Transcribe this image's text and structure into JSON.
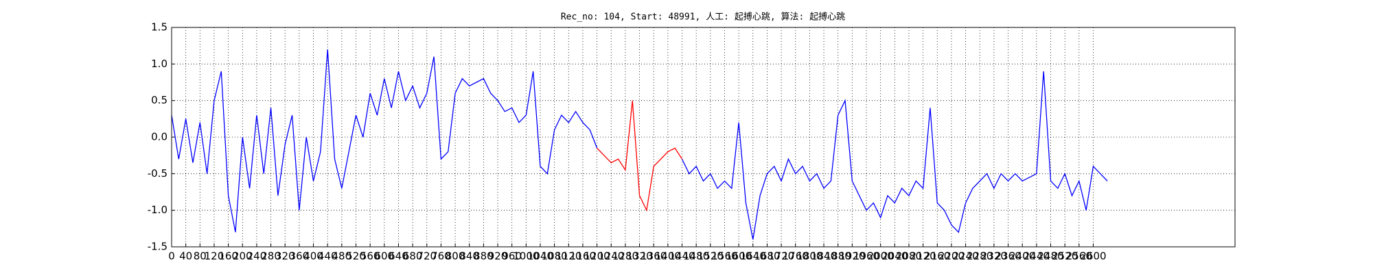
{
  "chart_data": {
    "type": "line",
    "title": "Rec_no: 104, Start: 48991, 人工: 起搏心跳, 算法: 起搏心跳",
    "x": [
      0,
      20,
      40,
      60,
      80,
      100,
      120,
      140,
      160,
      180,
      200,
      220,
      240,
      260,
      280,
      300,
      320,
      340,
      360,
      380,
      400,
      420,
      440,
      460,
      480,
      500,
      520,
      540,
      560,
      580,
      600,
      620,
      640,
      660,
      680,
      700,
      720,
      740,
      760,
      780,
      800,
      820,
      840,
      860,
      880,
      900,
      920,
      940,
      960,
      980,
      1000,
      1020,
      1040,
      1060,
      1080,
      1100,
      1120,
      1140,
      1160,
      1180,
      1200,
      1220,
      1240,
      1260,
      1280,
      1300,
      1320,
      1340,
      1360,
      1380,
      1400,
      1420,
      1440,
      1460,
      1480,
      1500,
      1520,
      1540,
      1560,
      1580,
      1600,
      1620,
      1640,
      1660,
      1680,
      1700,
      1720,
      1740,
      1760,
      1780,
      1800,
      1820,
      1840,
      1860,
      1880,
      1900,
      1920,
      1940,
      1960,
      1980,
      2000,
      2020,
      2040,
      2060,
      2080,
      2100,
      2120,
      2140,
      2160,
      2180,
      2200,
      2220,
      2240,
      2260,
      2280,
      2300,
      2320,
      2340,
      2360,
      2380,
      2400,
      2420,
      2440,
      2460,
      2480,
      2500,
      2520,
      2540,
      2560,
      2580,
      2600,
      2620,
      2640
    ],
    "series": [
      {
        "color": "#0000ff",
        "values": [
          0.3,
          -0.3,
          0.25,
          -0.35,
          0.2,
          -0.5,
          0.5,
          0.9,
          -0.8,
          -1.3,
          0.0,
          -0.7,
          0.3,
          -0.5,
          0.4,
          -0.8,
          -0.1,
          0.3,
          -1.0,
          0.0,
          -0.6,
          -0.2,
          1.2,
          -0.3,
          -0.7,
          -0.2,
          0.3,
          0.0,
          0.6,
          0.3,
          0.8,
          0.4,
          0.9,
          0.5,
          0.7,
          0.4,
          0.6,
          1.1,
          -0.3,
          -0.2,
          0.6,
          0.8,
          0.7,
          0.75,
          0.8,
          0.6,
          0.5,
          0.35,
          0.4,
          0.2,
          0.3,
          0.9,
          -0.4,
          -0.5,
          0.1,
          0.3,
          0.2,
          0.35,
          0.2,
          0.1,
          -0.15,
          null,
          null,
          null,
          null,
          null,
          null,
          null,
          null,
          null,
          null,
          null,
          -0.3,
          -0.5,
          -0.4,
          -0.6,
          -0.5,
          -0.7,
          -0.6,
          -0.7,
          0.2,
          -0.9,
          -1.4,
          -0.8,
          -0.5,
          -0.4,
          -0.6,
          -0.3,
          -0.5,
          -0.4,
          -0.6,
          -0.5,
          -0.7,
          -0.6,
          0.3,
          0.5,
          -0.6,
          -0.8,
          -1.0,
          -0.9,
          -1.1,
          -0.8,
          -0.9,
          -0.7,
          -0.8,
          -0.6,
          -0.7,
          0.4,
          -0.9,
          -1.0,
          -1.2,
          -1.3,
          -0.9,
          -0.7,
          -0.6,
          -0.5,
          -0.7,
          -0.5,
          -0.6,
          -0.5,
          -0.6,
          -0.55,
          -0.5,
          0.9,
          -0.6,
          -0.7,
          -0.5,
          -0.8,
          -0.6,
          -1.0,
          -0.4,
          -0.5,
          -0.6
        ]
      },
      {
        "color": "#ff0000",
        "values": [
          null,
          null,
          null,
          null,
          null,
          null,
          null,
          null,
          null,
          null,
          null,
          null,
          null,
          null,
          null,
          null,
          null,
          null,
          null,
          null,
          null,
          null,
          null,
          null,
          null,
          null,
          null,
          null,
          null,
          null,
          null,
          null,
          null,
          null,
          null,
          null,
          null,
          null,
          null,
          null,
          null,
          null,
          null,
          null,
          null,
          null,
          null,
          null,
          null,
          null,
          null,
          null,
          null,
          null,
          null,
          null,
          null,
          null,
          null,
          null,
          -0.15,
          -0.25,
          -0.35,
          -0.3,
          -0.45,
          0.5,
          -0.8,
          -1.0,
          -0.4,
          -0.3,
          -0.2,
          -0.15,
          -0.3,
          null,
          null,
          null,
          null,
          null,
          null,
          null,
          null,
          null,
          null,
          null,
          null,
          null,
          null,
          null,
          null,
          null,
          null,
          null,
          null,
          null,
          null,
          null,
          null,
          null,
          null,
          null,
          null,
          null,
          null,
          null,
          null,
          null,
          null,
          null,
          null,
          null,
          null,
          null,
          null,
          null,
          null,
          null,
          null,
          null,
          null,
          null,
          null,
          null,
          null,
          null,
          null,
          null,
          null,
          null,
          null,
          null,
          null,
          null,
          null
        ]
      }
    ],
    "xlim": [
      0,
      3000
    ],
    "xticks": [
      0,
      40,
      80,
      120,
      160,
      200,
      240,
      280,
      320,
      360,
      400,
      440,
      480,
      520,
      560,
      600,
      640,
      680,
      720,
      760,
      800,
      840,
      880,
      920,
      960,
      1000,
      1040,
      1080,
      1120,
      1160,
      1200,
      1240,
      1280,
      1320,
      1360,
      1400,
      1440,
      1480,
      1520,
      1560,
      1600,
      1640,
      1680,
      1720,
      1760,
      1800,
      1840,
      1880,
      1920,
      1960,
      2000,
      2040,
      2080,
      2120,
      2160,
      2200,
      2240,
      2280,
      2320,
      2360,
      2400,
      2440,
      2480,
      2520,
      2560,
      2600
    ],
    "ylim": [
      -1.5,
      1.5
    ],
    "yticks": [
      -1.5,
      {
        "value": -1,
        "label": "-1.0"
      },
      -0.5,
      {
        "value": 0,
        "label": "0.0"
      },
      0.5,
      {
        "value": 1,
        "label": "1.0"
      },
      1.5
    ],
    "grid": true
  }
}
